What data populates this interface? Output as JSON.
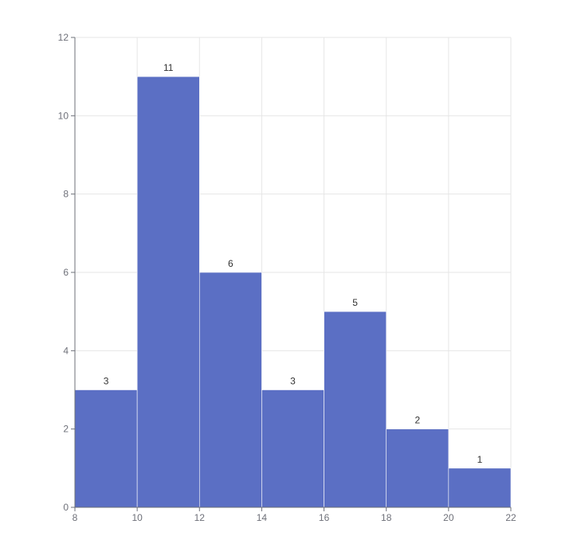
{
  "chart_data": {
    "type": "bar",
    "bins": [
      {
        "x0": 8,
        "x1": 10,
        "count": 3
      },
      {
        "x0": 10,
        "x1": 12,
        "count": 11
      },
      {
        "x0": 12,
        "x1": 14,
        "count": 6
      },
      {
        "x0": 14,
        "x1": 16,
        "count": 3
      },
      {
        "x0": 16,
        "x1": 18,
        "count": 5
      },
      {
        "x0": 18,
        "x1": 20,
        "count": 2
      },
      {
        "x0": 20,
        "x1": 22,
        "count": 1
      }
    ],
    "title": "",
    "xlabel": "",
    "ylabel": "",
    "xlim": [
      8,
      22
    ],
    "ylim": [
      0,
      12
    ],
    "x_ticks": [
      8,
      10,
      12,
      14,
      16,
      18,
      20,
      22
    ],
    "y_ticks": [
      0,
      2,
      4,
      6,
      8,
      10,
      12
    ],
    "grid": true,
    "legend": "none",
    "colors": {
      "bar": "#5b6fc4",
      "bar_edge": "#ffffff",
      "grid": "#e6e6e6",
      "axis": "#6e7079",
      "tick_text": "#6e7079",
      "label_text": "#333333"
    }
  }
}
